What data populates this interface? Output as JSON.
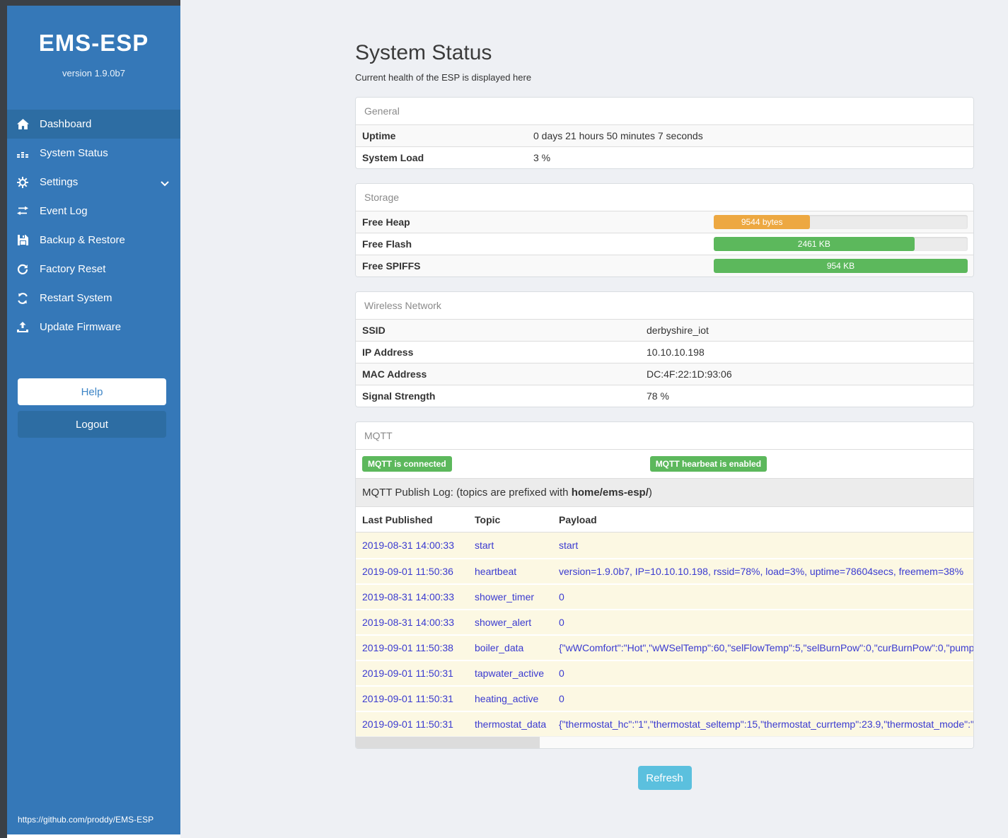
{
  "sidebar": {
    "title": "EMS-ESP",
    "version": "version 1.9.0b7",
    "items": [
      {
        "label": "Dashboard",
        "icon": "home-icon",
        "active": true
      },
      {
        "label": "System Status",
        "icon": "system-status-icon",
        "active": false
      },
      {
        "label": "Settings",
        "icon": "gear-icon",
        "active": false,
        "chevron": "down"
      },
      {
        "label": "Event Log",
        "icon": "exchange-icon",
        "active": false
      },
      {
        "label": "Backup & Restore",
        "icon": "save-icon",
        "active": false
      },
      {
        "label": "Factory Reset",
        "icon": "redo-icon",
        "active": false
      },
      {
        "label": "Restart System",
        "icon": "sync-icon",
        "active": false
      },
      {
        "label": "Update Firmware",
        "icon": "upload-icon",
        "active": false
      }
    ],
    "help_label": "Help",
    "logout_label": "Logout",
    "footer_link": "https://github.com/proddy/EMS-ESP"
  },
  "header": {
    "title": "System Status",
    "subtitle": "Current health of the ESP is displayed here"
  },
  "panels": {
    "general": {
      "title": "General",
      "rows": [
        {
          "label": "Uptime",
          "value": "0 days 21 hours 50 minutes 7 seconds"
        },
        {
          "label": "System Load",
          "value": "3 %"
        }
      ]
    },
    "storage": {
      "title": "Storage",
      "rows": [
        {
          "label": "Free Heap",
          "value": "9544 bytes",
          "percent": 38,
          "color": "#eda841"
        },
        {
          "label": "Free Flash",
          "value": "2461 KB",
          "percent": 79,
          "color": "#5cb85c"
        },
        {
          "label": "Free SPIFFS",
          "value": "954 KB",
          "percent": 100,
          "color": "#5cb85c"
        }
      ]
    },
    "wireless": {
      "title": "Wireless Network",
      "rows": [
        {
          "label": "SSID",
          "value": "derbyshire_iot"
        },
        {
          "label": "IP Address",
          "value": "10.10.10.198"
        },
        {
          "label": "MAC Address",
          "value": "DC:4F:22:1D:93:06"
        },
        {
          "label": "Signal Strength",
          "value": "78 %"
        }
      ]
    },
    "mqtt": {
      "title": "MQTT",
      "badges": [
        "MQTT is connected",
        "MQTT hearbeat is enabled"
      ],
      "publish_log_text": "MQTT Publish Log: (topics are prefixed with ",
      "publish_log_bold": "home/ems-esp/",
      "publish_log_suffix": ")",
      "table": {
        "headers": [
          "Last Published",
          "Topic",
          "Payload"
        ],
        "rows": [
          {
            "date": "2019-08-31 14:00:33",
            "topic": "start",
            "payload": "start"
          },
          {
            "date": "2019-09-01 11:50:36",
            "topic": "heartbeat",
            "payload": "version=1.9.0b7, IP=10.10.10.198, rssid=78%, load=3%, uptime=78604secs, freemem=38%"
          },
          {
            "date": "2019-08-31 14:00:33",
            "topic": "shower_timer",
            "payload": "0"
          },
          {
            "date": "2019-08-31 14:00:33",
            "topic": "shower_alert",
            "payload": "0"
          },
          {
            "date": "2019-09-01 11:50:38",
            "topic": "boiler_data",
            "payload": "{\"wWComfort\":\"Hot\",\"wWSelTemp\":60,\"selFlowTemp\":5,\"selBurnPow\":0,\"curBurnPow\":0,\"pump"
          },
          {
            "date": "2019-09-01 11:50:31",
            "topic": "tapwater_active",
            "payload": "0"
          },
          {
            "date": "2019-09-01 11:50:31",
            "topic": "heating_active",
            "payload": "0"
          },
          {
            "date": "2019-09-01 11:50:31",
            "topic": "thermostat_data",
            "payload": "{\"thermostat_hc\":\"1\",\"thermostat_seltemp\":15,\"thermostat_currtemp\":23.9,\"thermostat_mode\":\""
          }
        ]
      }
    }
  },
  "refresh_label": "Refresh",
  "colors": {
    "sidebar": "#3578b8",
    "sidebar_active": "#2d6da3",
    "success": "#5cb85c",
    "warning": "#eda841",
    "info": "#5bc0de"
  }
}
